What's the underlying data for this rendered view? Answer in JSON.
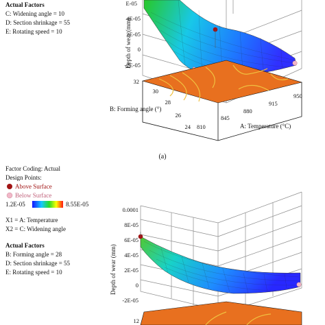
{
  "chart_data": [
    {
      "type": "surface",
      "panel_label": "(a)",
      "actual_factors": {
        "heading": "Actual Factors",
        "items": [
          "C: Widening angle = 10",
          "D: Section shrinkage = 55",
          "E: Rotating speed = 10"
        ]
      },
      "z_axis": {
        "label": "Depth of wear (mm)",
        "ticks": [
          "4E-05",
          "2E-05",
          "0",
          "-2E-05"
        ]
      },
      "x_axis": {
        "label": "A: Temperature (°C)",
        "ticks": [
          "810",
          "845",
          "880",
          "915",
          "950"
        ]
      },
      "y_axis": {
        "label": "B: Forming angle (°)",
        "ticks": [
          "24",
          "26",
          "28",
          "30",
          "32"
        ]
      },
      "partial_top_tick": "E-05"
    },
    {
      "type": "surface",
      "factor_coding": "Factor Coding: Actual",
      "design_points": {
        "heading": "Design Points:",
        "above": "Above Surface",
        "below": "Below Surface",
        "above_color": "#a11414",
        "below_color": "#f1b7c8"
      },
      "colorbar": {
        "min": "1.2E-05",
        "max": "8.55E-05",
        "colors": [
          "#1414ff",
          "#14c8ff",
          "#28dc28",
          "#ffff00",
          "#ff1414"
        ]
      },
      "variables": [
        "X1 = A: Temperature",
        "X2 = C: Widening angle"
      ],
      "actual_factors": {
        "heading": "Actual Factors",
        "items": [
          "B: Forming angle = 28",
          "D: Section shrinkage = 55",
          "E: Rotating speed = 10"
        ]
      },
      "z_axis": {
        "label": "Depth of wear (mm)",
        "ticks": [
          "0.0001",
          "8E-05",
          "6E-05",
          "4E-05",
          "2E-05",
          "0",
          "-2E-05"
        ]
      },
      "y_axis_visible_tick": "12"
    }
  ],
  "colors": {
    "contour_floor": "#e8701f",
    "contour_line": "#f0c040",
    "grid": "#8c8c8c",
    "above_point": "#a11414",
    "below_point": "#f1b7c8"
  }
}
